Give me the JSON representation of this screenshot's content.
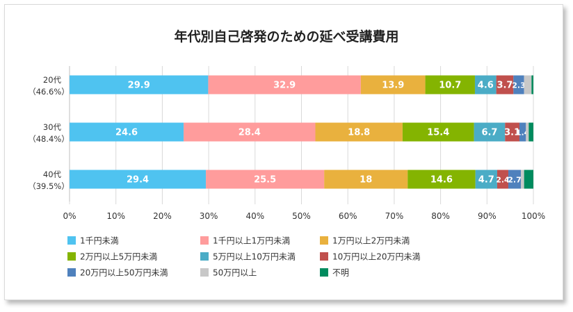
{
  "chart_data": {
    "type": "bar",
    "orientation": "horizontal",
    "stacked": true,
    "title": "年代別自己啓発のための延べ受講費用",
    "categories": [
      {
        "line1": "20代",
        "line2": "（46.6%）"
      },
      {
        "line1": "30代",
        "line2": "（48.4%）"
      },
      {
        "line1": "40代",
        "line2": "（39.5%）"
      }
    ],
    "xlim": [
      0,
      100
    ],
    "xticks": [
      "0%",
      "10%",
      "20%",
      "30%",
      "40%",
      "50%",
      "60%",
      "70%",
      "80%",
      "90%",
      "100%"
    ],
    "series": [
      {
        "name": "1千円未満",
        "color": "#4FC3F0",
        "values": [
          29.9,
          24.6,
          29.4
        ],
        "labels": [
          "29.9",
          "24.6",
          "29.4"
        ]
      },
      {
        "name": "1千円以上1万円未満",
        "color": "#FF9C9C",
        "values": [
          32.9,
          28.4,
          25.5
        ],
        "labels": [
          "32.9",
          "28.4",
          "25.5"
        ]
      },
      {
        "name": "1万円以上2万円未満",
        "color": "#E9B13E",
        "values": [
          13.9,
          18.8,
          18.0
        ],
        "labels": [
          "13.9",
          "18.8",
          "18"
        ]
      },
      {
        "name": "2万円以上5万円未満",
        "color": "#84B401",
        "values": [
          10.7,
          15.4,
          14.6
        ],
        "labels": [
          "10.7",
          "15.4",
          "14.6"
        ]
      },
      {
        "name": "5万円以上10万円未満",
        "color": "#4BACC6",
        "values": [
          4.6,
          6.7,
          4.7
        ],
        "labels": [
          "4.6",
          "6.7",
          "4.7"
        ]
      },
      {
        "name": "10万円以上20万円未満",
        "color": "#C0504D",
        "values": [
          3.7,
          3.1,
          2.4
        ],
        "labels": [
          "3.7",
          "3.1",
          "2.4"
        ]
      },
      {
        "name": "20万円以上50万円未満",
        "color": "#4F81BD",
        "values": [
          2.3,
          1.4,
          2.7
        ],
        "labels": [
          "2.3",
          "1.4",
          "2.7"
        ]
      },
      {
        "name": "50万円以上",
        "color": "#C8C8C8",
        "values": [
          1.6,
          0.6,
          0.7
        ],
        "labels": [
          "",
          "",
          ""
        ]
      },
      {
        "name": "不明",
        "color": "#008B5E",
        "values": [
          0.4,
          1.0,
          2.0
        ],
        "labels": [
          "",
          "",
          ""
        ]
      }
    ],
    "legend": {
      "position": "bottom",
      "columns": 3
    }
  }
}
